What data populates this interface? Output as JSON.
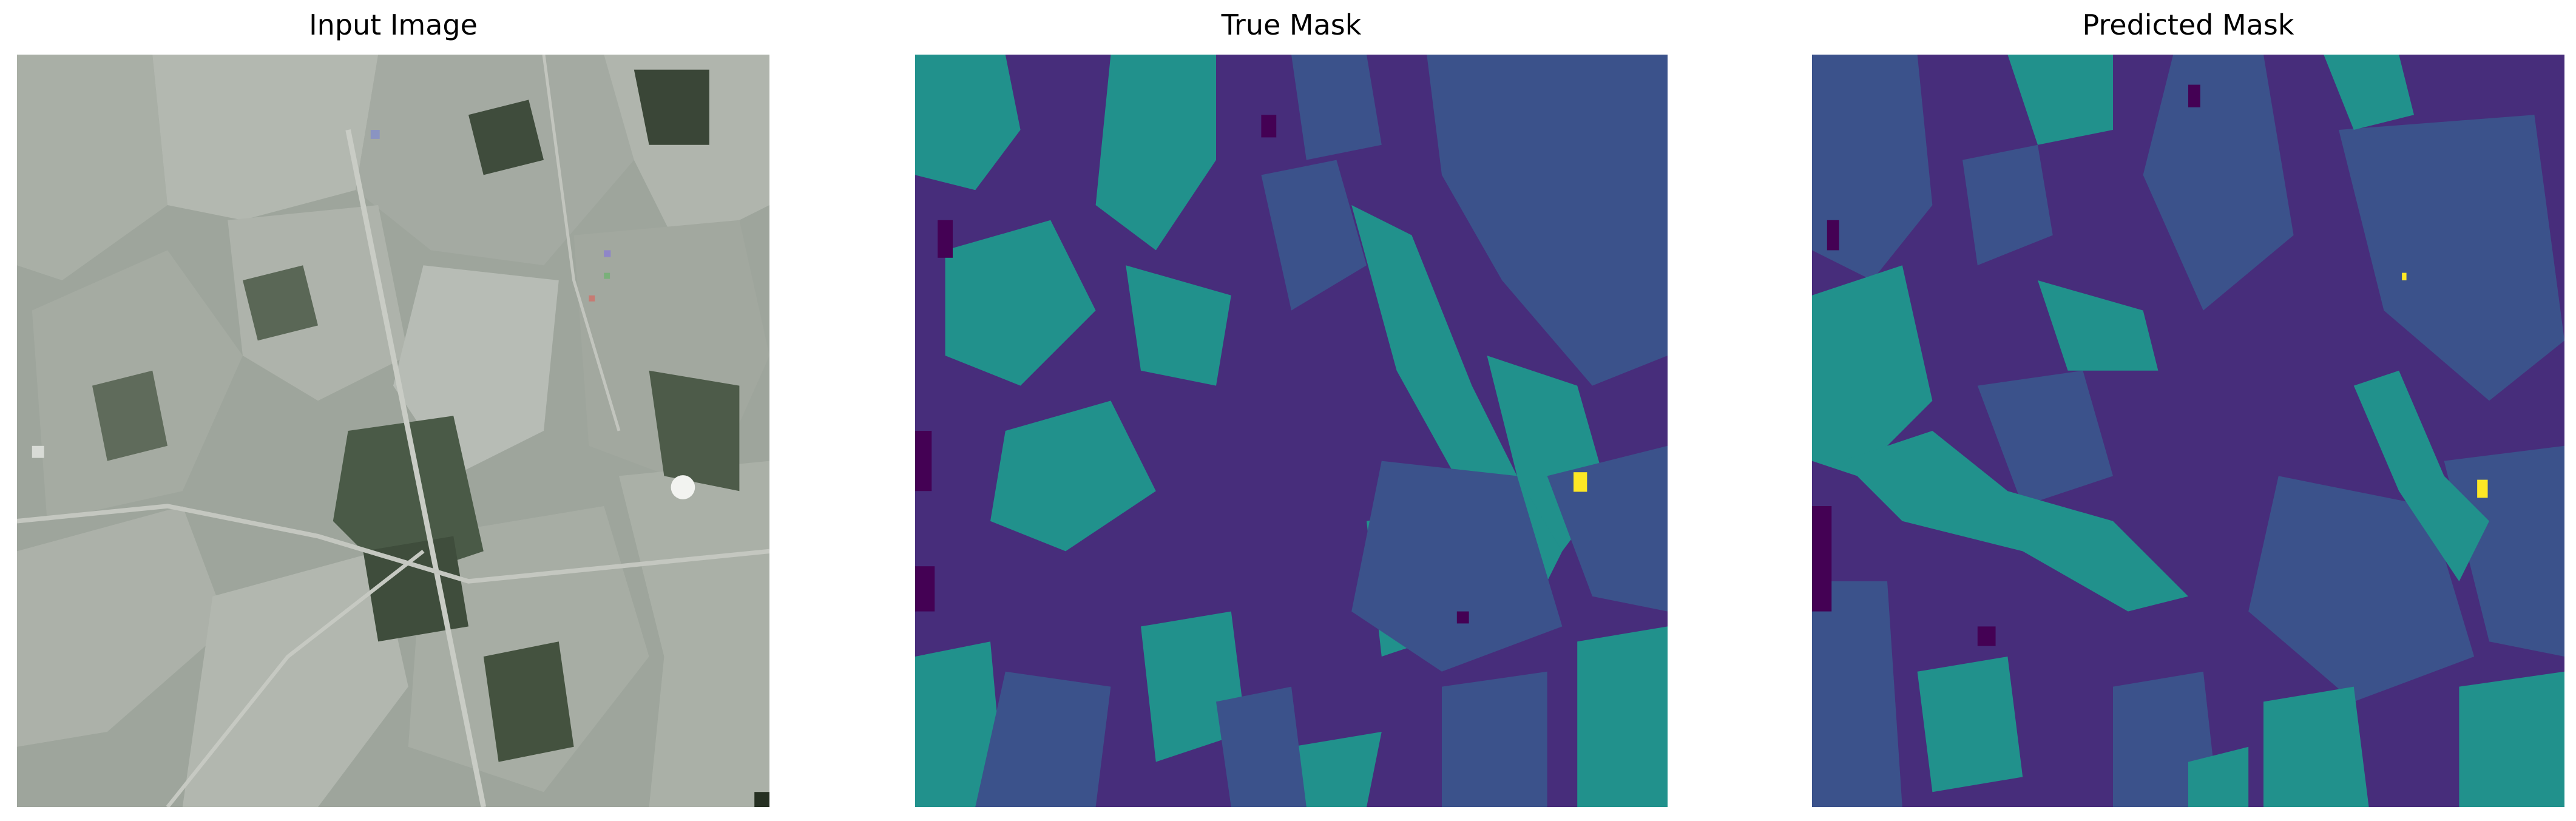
{
  "panels": [
    {
      "title": "Input Image"
    },
    {
      "title": "True Mask"
    },
    {
      "title": "Predicted Mask"
    }
  ],
  "mask_palette": {
    "class_0": "#440154",
    "class_1": "#472d7b",
    "class_2": "#3b528b",
    "class_3": "#21918c",
    "class_4": "#5ec962",
    "class_5": "#fde725"
  },
  "photo_palette": {
    "base": "#9ea59c",
    "light": "#b8bdb6",
    "dark": "#4f5d4b",
    "darker": "#3a4637",
    "road": "#c9ccc5"
  }
}
